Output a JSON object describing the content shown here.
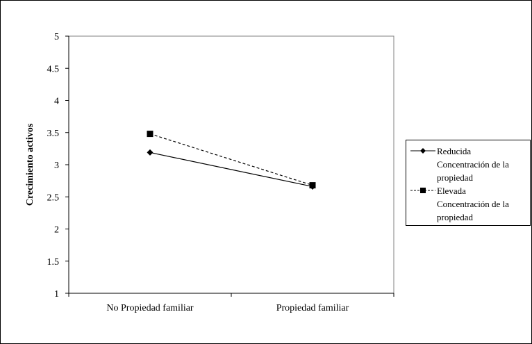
{
  "chart_data": {
    "type": "line",
    "title": "",
    "xlabel": "",
    "ylabel": "Crecimiento activos",
    "categories": [
      "No Propiedad familiar",
      "Propiedad familiar"
    ],
    "ylim": [
      1,
      5
    ],
    "yticks": [
      "1",
      "1.5",
      "2",
      "2.5",
      "3",
      "3.5",
      "4",
      "4.5",
      "5"
    ],
    "grid": false,
    "legend_position": "right",
    "series": [
      {
        "name": "Reducida Concentración de la propiedad",
        "values": [
          3.19,
          2.66
        ],
        "line_style": "solid",
        "marker": "diamond",
        "color": "#000000"
      },
      {
        "name": "Elevada Concentración de la propiedad",
        "values": [
          3.48,
          2.68
        ],
        "line_style": "dashed",
        "marker": "square",
        "color": "#000000"
      }
    ]
  },
  "legend": {
    "items": [
      {
        "line1": "Reducida",
        "line2": "Concentración de la",
        "line3": "propiedad"
      },
      {
        "line1": "Elevada",
        "line2": "Concentración de la",
        "line3": "propiedad"
      }
    ]
  }
}
